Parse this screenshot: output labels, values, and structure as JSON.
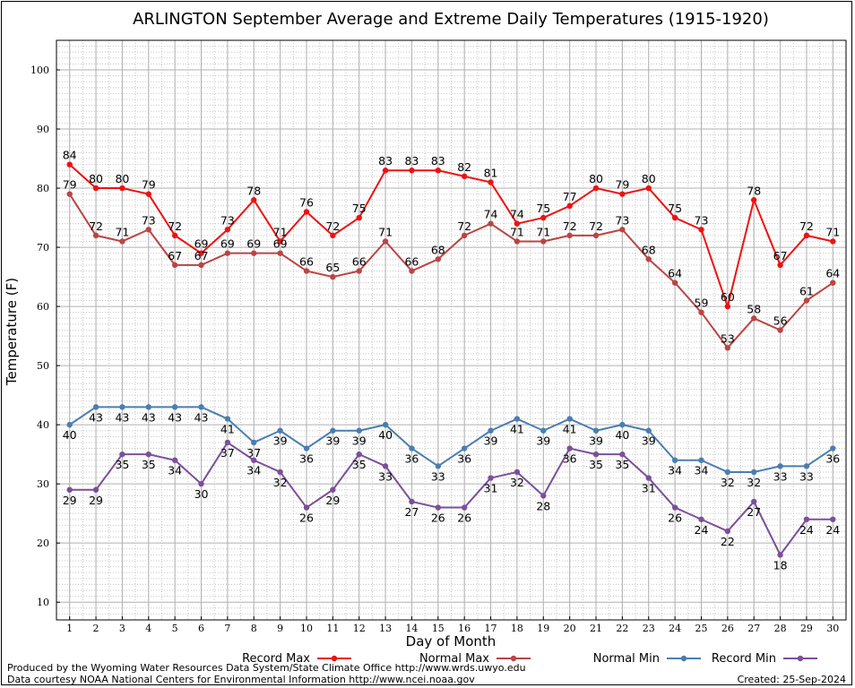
{
  "chart_data": {
    "type": "line",
    "title": "ARLINGTON September Average and Extreme Daily Temperatures (1915-1920)",
    "xlabel": "Day of Month",
    "ylabel": "Temperature (F)",
    "x": [
      1,
      2,
      3,
      4,
      5,
      6,
      7,
      8,
      9,
      10,
      11,
      12,
      13,
      14,
      15,
      16,
      17,
      18,
      19,
      20,
      21,
      22,
      23,
      24,
      25,
      26,
      27,
      28,
      29,
      30
    ],
    "xlim": [
      0.5,
      30.5
    ],
    "ylim": [
      7,
      105
    ],
    "yticks": [
      10,
      20,
      30,
      40,
      50,
      60,
      70,
      80,
      90,
      100
    ],
    "grid": true,
    "series": [
      {
        "name": "Record Max",
        "color": "#ee1111",
        "label_pos": "above",
        "values": [
          84,
          80,
          80,
          79,
          72,
          69,
          73,
          78,
          71,
          76,
          72,
          75,
          83,
          83,
          83,
          82,
          81,
          74,
          75,
          77,
          80,
          79,
          80,
          75,
          73,
          60,
          78,
          67,
          72,
          71
        ]
      },
      {
        "name": "Normal Max",
        "color": "#bb4444",
        "label_pos": "above",
        "values": [
          79,
          72,
          71,
          73,
          67,
          67,
          69,
          69,
          69,
          66,
          65,
          66,
          71,
          66,
          68,
          72,
          74,
          71,
          71,
          72,
          72,
          73,
          68,
          64,
          59,
          53,
          58,
          56,
          61,
          64
        ]
      },
      {
        "name": "Normal Min",
        "color": "#4a7eb0",
        "label_pos": "below",
        "values": [
          40,
          43,
          43,
          43,
          43,
          43,
          41,
          37,
          39,
          36,
          39,
          39,
          40,
          36,
          33,
          36,
          39,
          41,
          39,
          41,
          39,
          40,
          39,
          34,
          34,
          32,
          32,
          33,
          33,
          36
        ]
      },
      {
        "name": "Record Min",
        "color": "#7b4f9a",
        "label_pos": "below",
        "values": [
          29,
          29,
          35,
          35,
          34,
          30,
          37,
          34,
          32,
          26,
          29,
          35,
          33,
          27,
          26,
          26,
          31,
          32,
          28,
          36,
          35,
          35,
          31,
          26,
          24,
          22,
          27,
          18,
          24,
          24
        ]
      }
    ]
  },
  "legend": [
    {
      "label": "Record Max",
      "color": "#ee1111"
    },
    {
      "label": "Normal Max",
      "color": "#bb4444"
    },
    {
      "label": "Normal Min",
      "color": "#4a7eb0"
    },
    {
      "label": "Record Min",
      "color": "#7b4f9a"
    }
  ],
  "footer": {
    "produced_by": "Produced by the Wyoming Water Resources Data System/State Climate Office http://www.wrds.uwyo.edu",
    "data_courtesy": "Data courtesy NOAA National Centers for Environmental Information http://www.ncei.noaa.gov",
    "created": "Created:  25-Sep-2024"
  }
}
